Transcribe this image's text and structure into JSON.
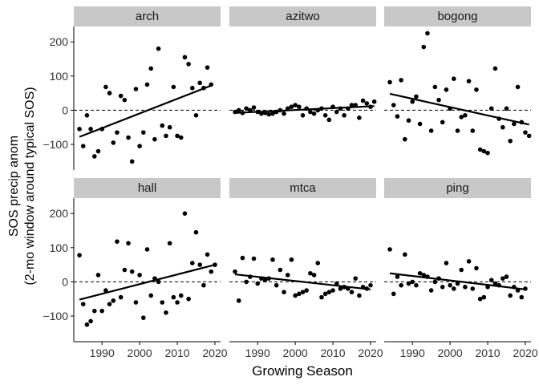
{
  "chart_data": {
    "type": "scatter",
    "xlabel": "Growing Season",
    "ylabel": "SOS precip anom",
    "ylabel_line2": "(2-mo window around typical SOS)",
    "xlim": [
      1982.5,
      2021.5
    ],
    "ylim": [
      -175,
      245
    ],
    "xticks": [
      1990,
      2000,
      2010,
      2020
    ],
    "yticks": [
      -100,
      0,
      100,
      200
    ],
    "reference_line": {
      "y": 0,
      "style": "dashed"
    },
    "grid": false,
    "legend": "none",
    "colors": {
      "point": "#000000",
      "strip_bg": "#c8c8c8",
      "axis": "#000000"
    },
    "panels": [
      {
        "name": "arch",
        "points": [
          [
            1984,
            -55
          ],
          [
            1985,
            -105
          ],
          [
            1986,
            -15
          ],
          [
            1987,
            -55
          ],
          [
            1988,
            -135
          ],
          [
            1989,
            -120
          ],
          [
            1990,
            -55
          ],
          [
            1991,
            68
          ],
          [
            1992,
            50
          ],
          [
            1993,
            -95
          ],
          [
            1994,
            -65
          ],
          [
            1995,
            42
          ],
          [
            1996,
            30
          ],
          [
            1997,
            -80
          ],
          [
            1998,
            -150
          ],
          [
            1999,
            62
          ],
          [
            2000,
            -105
          ],
          [
            2001,
            -65
          ],
          [
            2002,
            75
          ],
          [
            2003,
            122
          ],
          [
            2004,
            -85
          ],
          [
            2005,
            180
          ],
          [
            2006,
            -45
          ],
          [
            2007,
            -75
          ],
          [
            2008,
            -50
          ],
          [
            2009,
            68
          ],
          [
            2010,
            -75
          ],
          [
            2011,
            -80
          ],
          [
            2012,
            155
          ],
          [
            2013,
            135
          ],
          [
            2014,
            65
          ],
          [
            2015,
            -15
          ],
          [
            2016,
            80
          ],
          [
            2017,
            65
          ],
          [
            2018,
            125
          ],
          [
            2019,
            75
          ]
        ],
        "trend": [
          [
            1984,
            -78
          ],
          [
            2019,
            72
          ]
        ]
      },
      {
        "name": "azitwo",
        "points": [
          [
            1984,
            -5
          ],
          [
            1985,
            0
          ],
          [
            1986,
            -8
          ],
          [
            1987,
            5
          ],
          [
            1988,
            0
          ],
          [
            1989,
            8
          ],
          [
            1990,
            -5
          ],
          [
            1991,
            -10
          ],
          [
            1992,
            -8
          ],
          [
            1993,
            -12
          ],
          [
            1994,
            -10
          ],
          [
            1995,
            -5
          ],
          [
            1996,
            0
          ],
          [
            1997,
            -10
          ],
          [
            1998,
            5
          ],
          [
            1999,
            10
          ],
          [
            2000,
            15
          ],
          [
            2001,
            10
          ],
          [
            2002,
            -15
          ],
          [
            2003,
            5
          ],
          [
            2004,
            -5
          ],
          [
            2005,
            -10
          ],
          [
            2006,
            0
          ],
          [
            2007,
            5
          ],
          [
            2008,
            -15
          ],
          [
            2009,
            -28
          ],
          [
            2010,
            10
          ],
          [
            2011,
            -5
          ],
          [
            2012,
            5
          ],
          [
            2013,
            -15
          ],
          [
            2014,
            5
          ],
          [
            2015,
            15
          ],
          [
            2016,
            15
          ],
          [
            2017,
            -22
          ],
          [
            2018,
            28
          ],
          [
            2019,
            20
          ],
          [
            2020,
            10
          ],
          [
            2021,
            25
          ]
        ],
        "trend": [
          [
            1984,
            -8
          ],
          [
            2021,
            12
          ]
        ]
      },
      {
        "name": "bogong",
        "points": [
          [
            1984,
            82
          ],
          [
            1985,
            15
          ],
          [
            1986,
            -18
          ],
          [
            1987,
            88
          ],
          [
            1988,
            -85
          ],
          [
            1989,
            -30
          ],
          [
            1990,
            25
          ],
          [
            1991,
            40
          ],
          [
            1992,
            -40
          ],
          [
            1993,
            185
          ],
          [
            1994,
            225
          ],
          [
            1995,
            -60
          ],
          [
            1996,
            68
          ],
          [
            1997,
            30
          ],
          [
            1998,
            -35
          ],
          [
            1999,
            60
          ],
          [
            2000,
            5
          ],
          [
            2001,
            92
          ],
          [
            2002,
            -60
          ],
          [
            2003,
            -20
          ],
          [
            2004,
            -15
          ],
          [
            2005,
            85
          ],
          [
            2006,
            -60
          ],
          [
            2007,
            60
          ],
          [
            2008,
            -115
          ],
          [
            2009,
            -120
          ],
          [
            2010,
            -125
          ],
          [
            2011,
            5
          ],
          [
            2012,
            122
          ],
          [
            2013,
            -25
          ],
          [
            2014,
            -50
          ],
          [
            2015,
            5
          ],
          [
            2016,
            -90
          ],
          [
            2017,
            -40
          ],
          [
            2018,
            68
          ],
          [
            2019,
            -35
          ],
          [
            2020,
            -65
          ],
          [
            2021,
            -75
          ]
        ],
        "trend": [
          [
            1984,
            48
          ],
          [
            2021,
            -42
          ]
        ]
      },
      {
        "name": "hall",
        "points": [
          [
            1984,
            78
          ],
          [
            1985,
            -65
          ],
          [
            1986,
            -125
          ],
          [
            1987,
            -115
          ],
          [
            1988,
            -85
          ],
          [
            1989,
            20
          ],
          [
            1990,
            -85
          ],
          [
            1991,
            -25
          ],
          [
            1992,
            -65
          ],
          [
            1993,
            -55
          ],
          [
            1994,
            118
          ],
          [
            1995,
            -45
          ],
          [
            1996,
            35
          ],
          [
            1997,
            113
          ],
          [
            1998,
            30
          ],
          [
            1999,
            -60
          ],
          [
            2000,
            20
          ],
          [
            2001,
            -105
          ],
          [
            2002,
            95
          ],
          [
            2003,
            -40
          ],
          [
            2004,
            10
          ],
          [
            2005,
            0
          ],
          [
            2006,
            -60
          ],
          [
            2007,
            -90
          ],
          [
            2008,
            113
          ],
          [
            2009,
            -45
          ],
          [
            2010,
            -60
          ],
          [
            2011,
            -40
          ],
          [
            2012,
            200
          ],
          [
            2013,
            -50
          ],
          [
            2014,
            55
          ],
          [
            2015,
            145
          ],
          [
            2016,
            50
          ],
          [
            2017,
            -10
          ],
          [
            2018,
            80
          ],
          [
            2019,
            30
          ],
          [
            2020,
            50
          ]
        ],
        "trend": [
          [
            1984,
            -52
          ],
          [
            2020,
            50
          ]
        ]
      },
      {
        "name": "mtca",
        "points": [
          [
            1984,
            30
          ],
          [
            1985,
            -55
          ],
          [
            1986,
            70
          ],
          [
            1987,
            0
          ],
          [
            1988,
            15
          ],
          [
            1989,
            68
          ],
          [
            1990,
            -5
          ],
          [
            1991,
            10
          ],
          [
            1992,
            5
          ],
          [
            1993,
            10
          ],
          [
            1994,
            65
          ],
          [
            1995,
            -10
          ],
          [
            1996,
            35
          ],
          [
            1997,
            -30
          ],
          [
            1998,
            20
          ],
          [
            1999,
            65
          ],
          [
            2000,
            -40
          ],
          [
            2001,
            -35
          ],
          [
            2002,
            -30
          ],
          [
            2003,
            -25
          ],
          [
            2004,
            25
          ],
          [
            2005,
            20
          ],
          [
            2006,
            55
          ],
          [
            2007,
            -45
          ],
          [
            2008,
            -35
          ],
          [
            2009,
            -30
          ],
          [
            2010,
            -25
          ],
          [
            2011,
            -5
          ],
          [
            2012,
            -20
          ],
          [
            2013,
            -15
          ],
          [
            2014,
            -20
          ],
          [
            2015,
            -30
          ],
          [
            2016,
            10
          ],
          [
            2017,
            -40
          ],
          [
            2018,
            -15
          ],
          [
            2019,
            -20
          ],
          [
            2020,
            -10
          ]
        ],
        "trend": [
          [
            1984,
            22
          ],
          [
            2020,
            -22
          ]
        ]
      },
      {
        "name": "ping",
        "points": [
          [
            1984,
            95
          ],
          [
            1985,
            -35
          ],
          [
            1986,
            15
          ],
          [
            1987,
            -10
          ],
          [
            1988,
            80
          ],
          [
            1989,
            -5
          ],
          [
            1990,
            0
          ],
          [
            1991,
            -10
          ],
          [
            1992,
            25
          ],
          [
            1993,
            20
          ],
          [
            1994,
            15
          ],
          [
            1995,
            -25
          ],
          [
            1996,
            0
          ],
          [
            1997,
            10
          ],
          [
            1998,
            -15
          ],
          [
            1999,
            55
          ],
          [
            2000,
            -10
          ],
          [
            2001,
            -20
          ],
          [
            2002,
            -5
          ],
          [
            2003,
            35
          ],
          [
            2004,
            -15
          ],
          [
            2005,
            60
          ],
          [
            2006,
            -20
          ],
          [
            2007,
            40
          ],
          [
            2008,
            -50
          ],
          [
            2009,
            -45
          ],
          [
            2010,
            -15
          ],
          [
            2011,
            5
          ],
          [
            2012,
            -5
          ],
          [
            2013,
            -10
          ],
          [
            2014,
            10
          ],
          [
            2015,
            15
          ],
          [
            2016,
            -40
          ],
          [
            2017,
            -15
          ],
          [
            2018,
            -25
          ],
          [
            2019,
            -45
          ],
          [
            2020,
            -20
          ]
        ],
        "trend": [
          [
            1984,
            25
          ],
          [
            2020,
            -22
          ]
        ]
      }
    ]
  }
}
